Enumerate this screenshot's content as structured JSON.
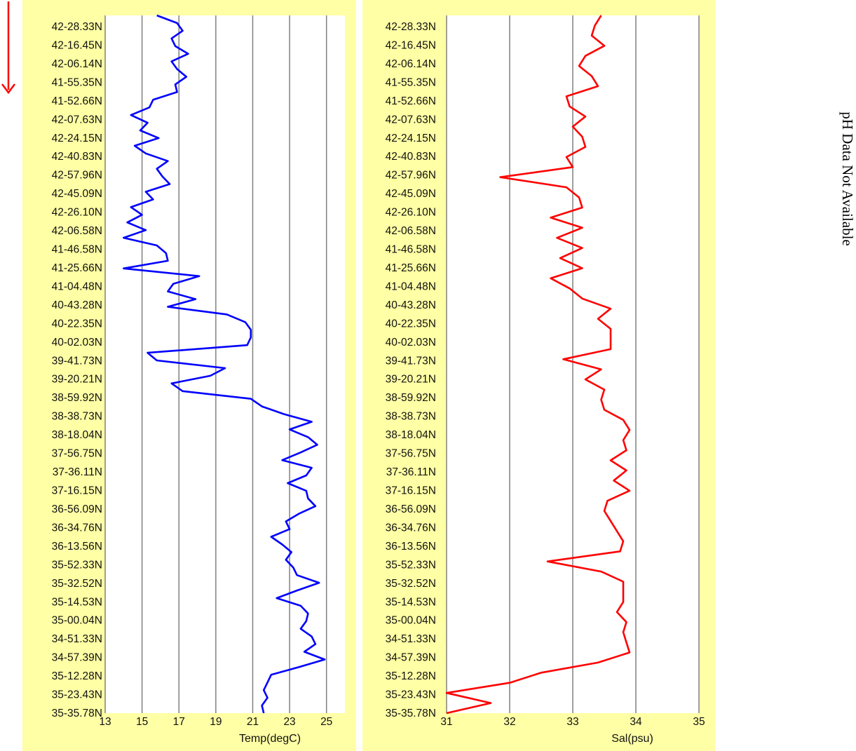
{
  "direction_arrow": {
    "icon": "arrow-down-icon",
    "color": "#ff0000"
  },
  "side_note": "pH Data Not Available",
  "latitude_labels": [
    "42-28.33N",
    "42-16.45N",
    "42-06.14N",
    "41-55.35N",
    "41-52.66N",
    "42-07.63N",
    "42-24.15N",
    "42-40.83N",
    "42-57.96N",
    "42-45.09N",
    "42-26.10N",
    "42-06.58N",
    "41-46.58N",
    "41-25.66N",
    "41-04.48N",
    "40-43.28N",
    "40-22.35N",
    "40-02.03N",
    "39-41.73N",
    "39-20.21N",
    "38-59.92N",
    "38-38.73N",
    "38-18.04N",
    "37-56.75N",
    "37-36.11N",
    "37-16.15N",
    "36-56.09N",
    "36-34.76N",
    "36-13.56N",
    "35-52.33N",
    "35-32.52N",
    "35-14.53N",
    "35-00.04N",
    "34-51.33N",
    "34-57.39N",
    "35-12.28N",
    "35-23.43N",
    "35-35.78N"
  ],
  "chart_data": [
    {
      "type": "line",
      "xlabel": "Temp(degC)",
      "xlim": [
        13,
        26
      ],
      "xticks": [
        13,
        15,
        17,
        19,
        21,
        23,
        25
      ],
      "grid": true,
      "series": [
        {
          "color": "#0000ff",
          "values": [
            15.8,
            16.9,
            17.2,
            16.6,
            16.8,
            17.5,
            16.6,
            16.9,
            17.4,
            16.8,
            16.9,
            15.6,
            15.4,
            14.4,
            15.3,
            14.9,
            15.9,
            14.6,
            15.2,
            16.4,
            15.8,
            16.1,
            16.5,
            15.2,
            15.6,
            14.4,
            15.0,
            14.2,
            15.2,
            14.0,
            15.8,
            16.3,
            16.4,
            14.0,
            18.1,
            16.7,
            16.4,
            17.9,
            16.4,
            19.6,
            20.6,
            20.9,
            20.9,
            20.7,
            15.3,
            15.8,
            19.5,
            18.7,
            16.6,
            17.2,
            20.9,
            21.5,
            22.7,
            24.2,
            23.0,
            24.0,
            24.5,
            23.6,
            22.6,
            24.2,
            23.9,
            22.9,
            23.9,
            24.0,
            24.4,
            23.5,
            22.8,
            23.0,
            22.0,
            22.6,
            23.1,
            22.8,
            23.2,
            23.4,
            24.6,
            23.4,
            22.3,
            23.6,
            24.0,
            23.9,
            23.6,
            24.2,
            24.4,
            23.8,
            24.9,
            23.5,
            22.0,
            21.8,
            21.6,
            21.8,
            21.5,
            21.6
          ]
        }
      ]
    },
    {
      "type": "line",
      "xlabel": "Sal(psu)",
      "xlim": [
        31,
        35
      ],
      "xticks": [
        31,
        32,
        33,
        34,
        35
      ],
      "grid": true,
      "series": [
        {
          "color": "#ff0000",
          "values": [
            33.45,
            33.35,
            33.3,
            33.5,
            33.2,
            33.1,
            33.3,
            33.4,
            32.9,
            32.95,
            33.2,
            33.0,
            33.15,
            33.2,
            32.9,
            33.0,
            31.85,
            32.9,
            33.1,
            33.15,
            32.65,
            33.15,
            32.75,
            33.15,
            32.8,
            33.15,
            32.65,
            32.95,
            33.15,
            33.6,
            33.4,
            33.6,
            33.6,
            33.6,
            32.85,
            33.45,
            33.2,
            33.5,
            33.45,
            33.5,
            33.8,
            33.9,
            33.8,
            33.85,
            33.6,
            33.85,
            33.65,
            33.9,
            33.55,
            33.5,
            33.6,
            33.7,
            33.8,
            33.75,
            32.6,
            33.45,
            33.8,
            33.8,
            33.8,
            33.7,
            33.85,
            33.8,
            33.85,
            33.9,
            33.4,
            32.5,
            32.0,
            31.0,
            31.7,
            31.0
          ]
        }
      ]
    }
  ]
}
